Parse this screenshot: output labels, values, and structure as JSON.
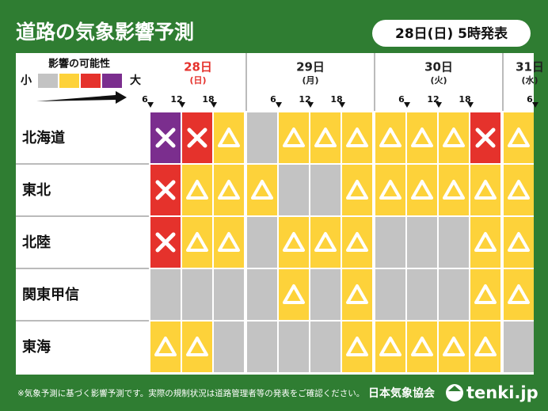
{
  "header": {
    "title": "道路の気象影響予測",
    "issued": "28日(日) 5時発表"
  },
  "legend": {
    "title": "影響の可能性",
    "low": "小",
    "high": "大",
    "colors": [
      "#c3c3c3",
      "#fdd23a",
      "#e5322c",
      "#7b2e8e"
    ]
  },
  "days": [
    {
      "date": "28日",
      "weekday": "(日)",
      "color": "#e5322c",
      "hours": [
        6,
        12,
        18
      ]
    },
    {
      "date": "29日",
      "weekday": "(月)",
      "color": "#222222",
      "hours": [
        6,
        12,
        18
      ]
    },
    {
      "date": "30日",
      "weekday": "(火)",
      "color": "#222222",
      "hours": [
        6,
        12,
        18
      ]
    },
    {
      "date": "31日",
      "weekday": "(水)",
      "color": "#222222",
      "hours": [
        6
      ]
    }
  ],
  "rows": [
    {
      "region": "北海道",
      "levels": [
        3,
        2,
        1,
        0,
        1,
        1,
        1,
        1,
        1,
        1,
        2,
        1
      ]
    },
    {
      "region": "東北",
      "levels": [
        2,
        1,
        1,
        1,
        0,
        0,
        1,
        1,
        1,
        1,
        1,
        1
      ]
    },
    {
      "region": "北陸",
      "levels": [
        2,
        1,
        1,
        0,
        1,
        1,
        1,
        0,
        0,
        0,
        1,
        1
      ]
    },
    {
      "region": "関東甲信",
      "levels": [
        0,
        0,
        0,
        0,
        1,
        0,
        1,
        0,
        0,
        0,
        1,
        1
      ]
    },
    {
      "region": "東海",
      "levels": [
        1,
        1,
        0,
        0,
        0,
        0,
        1,
        1,
        1,
        1,
        1,
        0
      ]
    }
  ],
  "footer": {
    "note": "※気象予測に基づく影響予測です。実際の規制状況は道路管理者等の発表をご確認ください。",
    "org": "日本気象協会",
    "brand": "tenki.jp"
  }
}
